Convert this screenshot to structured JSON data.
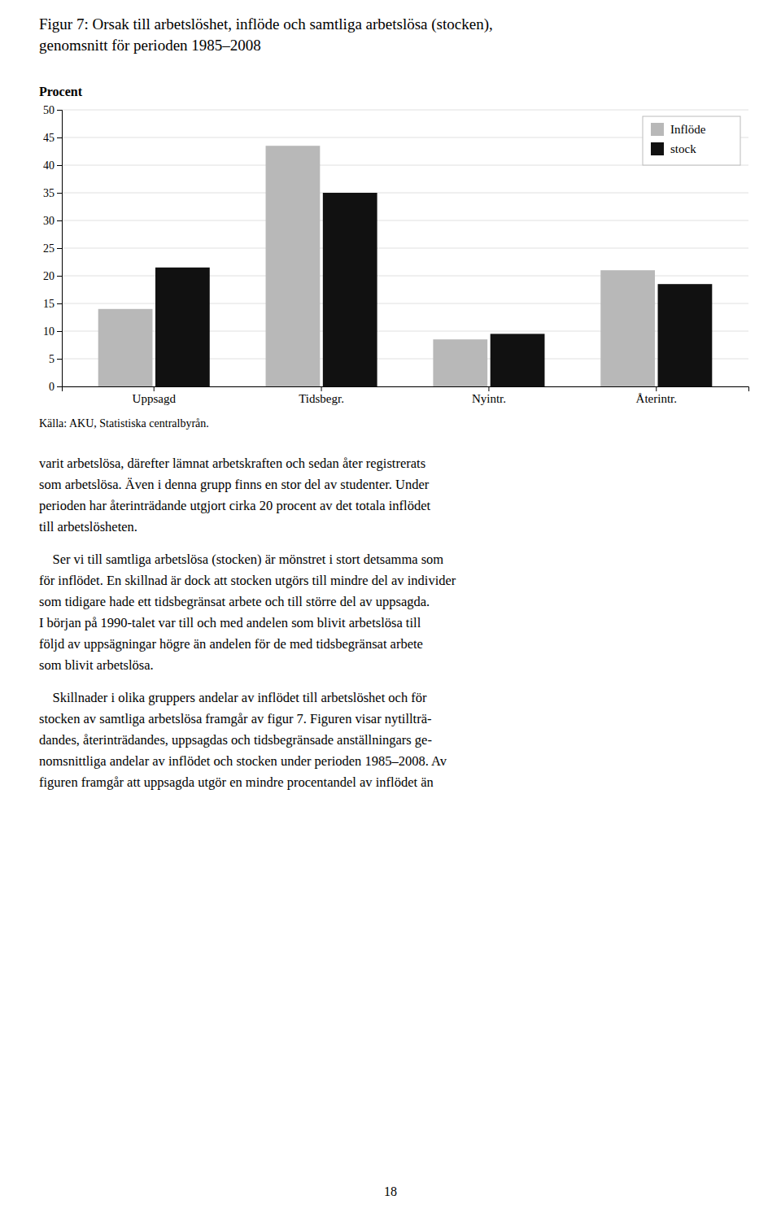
{
  "chart_data": {
    "type": "bar",
    "title": [
      "Figur 7: Orsak till arbetslöshet, inflöde och samtliga arbetslösa (stocken),",
      "genomsnitt för perioden 1985–2008"
    ],
    "y_label": "Procent",
    "categories": [
      "Uppsagd",
      "Tidsbegr.",
      "Nyintr.",
      "Återintr."
    ],
    "series": [
      {
        "name": "Inflöde",
        "color": "#b8b8b8",
        "values": [
          14.0,
          43.5,
          8.5,
          21.0
        ]
      },
      {
        "name": "stock",
        "color": "#111111",
        "values": [
          21.5,
          35.0,
          9.5,
          18.5
        ]
      }
    ],
    "ylim": [
      0,
      50
    ],
    "yticks": [
      0,
      5,
      10,
      15,
      20,
      25,
      30,
      35,
      40,
      45,
      50
    ],
    "grid": true,
    "legend": "upper right",
    "source": "Källa: AKU, Statistiska centralbyrån.",
    "annotations": [
      [
        "varit arbetslösa, därefter lämnat arbetskraften och sedan åter registrerats",
        "som arbetslösa. Även i denna grupp finns en stor del av studenter. Under",
        "perioden har återinträdande utgjort cirka 20 procent av det totala inflödet",
        "till arbetslösheten."
      ],
      [
        " Ser vi till samtliga arbetslösa (stocken) är mönstret i stort detsamma som",
        "för inflödet. En skillnad är dock att stocken utgörs till mindre del av individer",
        "som tidigare hade ett tidsbegränsat arbete och till större del av uppsagda.",
        "I början på 1990-talet var till och med andelen som blivit arbetslösa till",
        "följd av uppsägningar högre än andelen för de med tidsbegränsat arbete",
        "som blivit arbetslösa."
      ],
      [
        " Skillnader i olika gruppers andelar av inflödet till arbetslöshet och för",
        "stocken av samtliga arbetslösa framgår av figur 7. Figuren visar nytillträ-",
        "dandes, återinträdandes, uppsagdas och tidsbegränsade anställningars ge-",
        "nomsnittliga andelar av inflödet och stocken under perioden 1985–2008. Av",
        "figuren framgår att uppsagda utgör en mindre procentandel av inflödet än"
      ]
    ],
    "page_number": "18"
  }
}
